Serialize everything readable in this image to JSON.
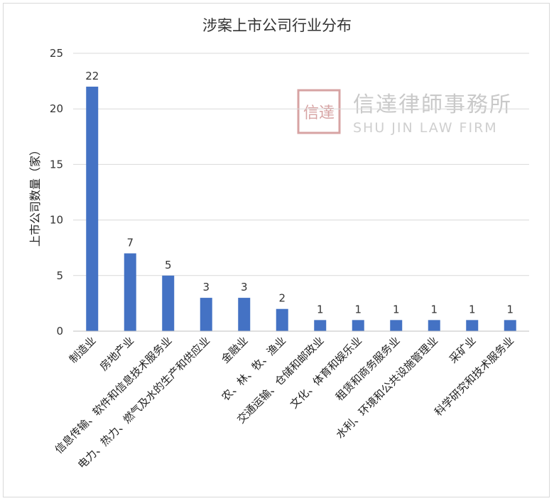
{
  "watermark": {
    "name_cn": "信達律師事務所",
    "name_en": "SHU JIN LAW FIRM",
    "seal_chars": "信達",
    "seal_color": "#d7a3a3"
  },
  "chart_data": {
    "type": "bar",
    "title": "涉案上市公司行业分布",
    "xlabel": "",
    "ylabel": "上市公司数量（家）",
    "ylim": [
      0,
      25
    ],
    "yticks": [
      0,
      5,
      10,
      15,
      20,
      25
    ],
    "grid": true,
    "bar_color": "#4472c4",
    "categories": [
      "制造业",
      "房地产业",
      "信息传输、软件和信息技术服务业",
      "电力、热力、燃气及水的生产和供应业",
      "金融业",
      "农、林、牧、渔业",
      "交通运输、仓储和邮政业",
      "文化、体育和娱乐业",
      "租赁和商务服务业",
      "水利、环境和公共设施管理业",
      "采矿业",
      "科学研究和技术服务业"
    ],
    "values": [
      22,
      7,
      5,
      3,
      3,
      2,
      1,
      1,
      1,
      1,
      1,
      1
    ]
  }
}
